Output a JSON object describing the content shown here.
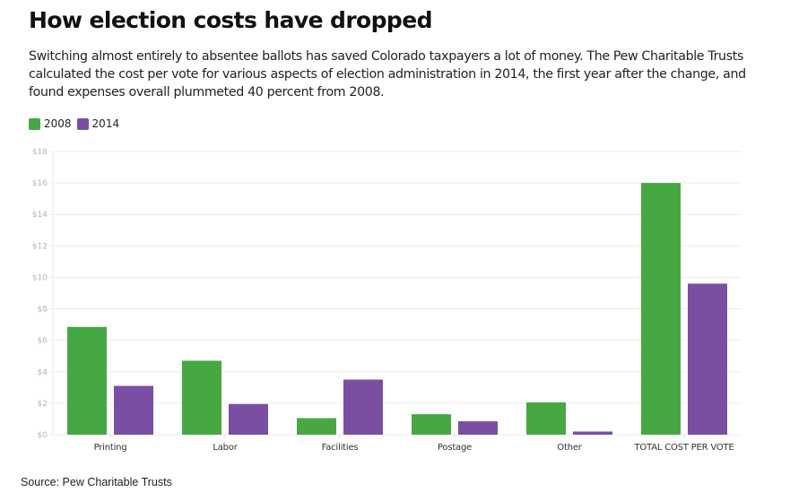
{
  "header": {
    "title": "How election costs have dropped",
    "subtitle": "Switching almost entirely to absentee ballots has saved Colorado taxpayers a lot of money. The Pew Charitable Trusts calculated the cost per vote for various aspects of election administration in 2014, the first year after the change, and found expenses overall plummeted 40 percent from 2008."
  },
  "footer": {
    "source": "Source: Pew Charitable Trusts"
  },
  "chart_data": {
    "type": "bar",
    "title": "How election costs have dropped",
    "xlabel": "",
    "ylabel": "",
    "categories": [
      "Printing",
      "Labor",
      "Facilities",
      "Postage",
      "Other",
      "TOTAL COST PER VOTE"
    ],
    "series": [
      {
        "name": "2008",
        "color": "#47a843",
        "values": [
          6.85,
          4.7,
          1.05,
          1.3,
          2.05,
          16.0
        ]
      },
      {
        "name": "2014",
        "color": "#7a4fa3",
        "values": [
          3.1,
          1.95,
          3.5,
          0.85,
          0.2,
          9.6
        ]
      }
    ],
    "ylim": [
      0,
      18
    ],
    "yticks": [
      0,
      2,
      4,
      6,
      8,
      10,
      12,
      14,
      16,
      18
    ],
    "ytick_labels": [
      "$0",
      "$2",
      "$4",
      "$6",
      "$8",
      "$10",
      "$12",
      "$14",
      "$16",
      "$18"
    ],
    "grid": true,
    "legend_position": "top-left"
  }
}
